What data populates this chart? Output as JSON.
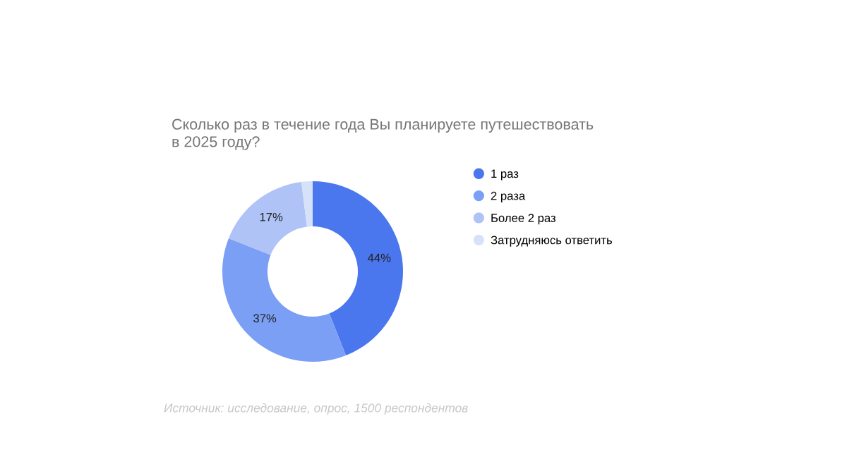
{
  "chart_data": {
    "type": "donut",
    "title": "Сколько раз в течение года Вы планируете путешествовать\nв 2025 году?",
    "categories": [
      "1 раз",
      "2 раза",
      "Более 2 раз",
      "Затрудняюсь ответить"
    ],
    "values": [
      44,
      37,
      17,
      2
    ],
    "value_labels": [
      "44%",
      "37%",
      "17%",
      null
    ],
    "colors": [
      "#4a76ee",
      "#7b9ff5",
      "#b0c3f7",
      "#d6e1fa"
    ],
    "legend": "right",
    "annotations": [
      "Источник: исследование, опрос, 1500 респондентов"
    ]
  }
}
